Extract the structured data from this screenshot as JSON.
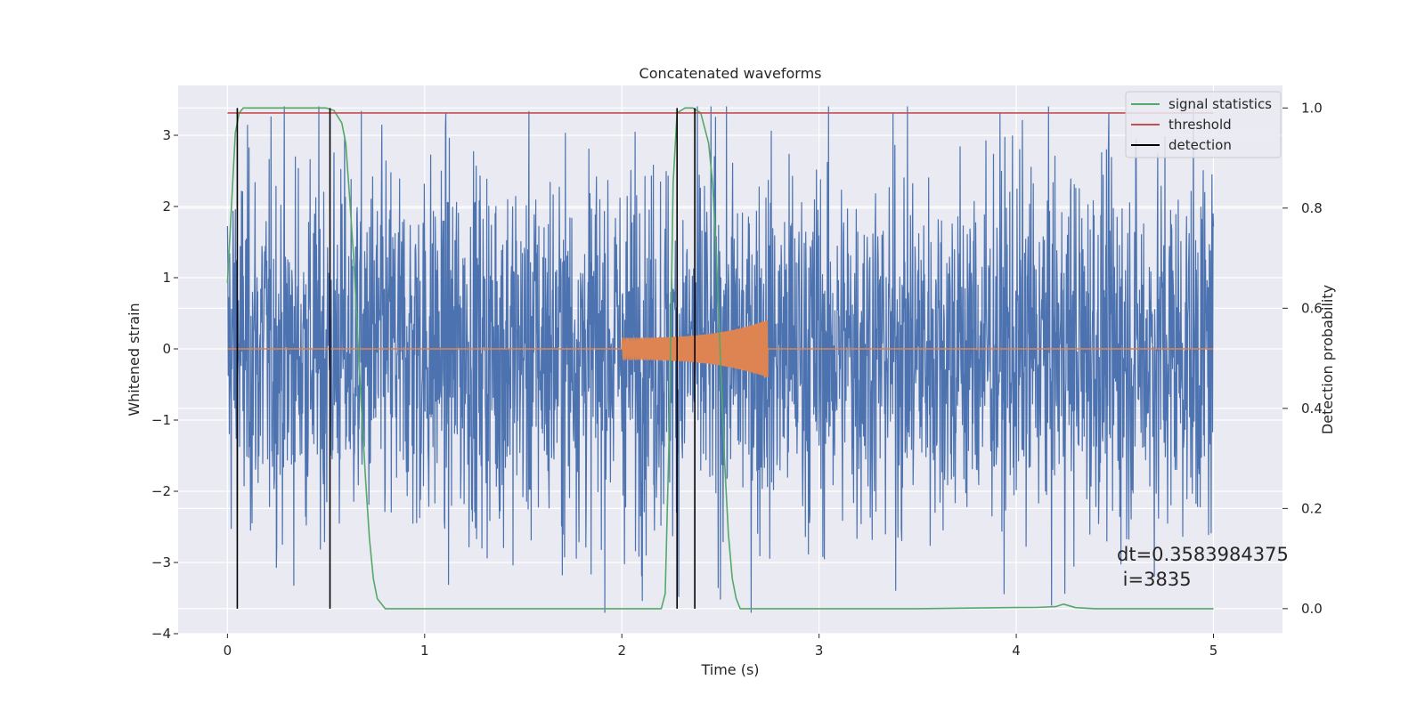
{
  "chart_data": {
    "type": "line",
    "title": "Concatenated waveforms",
    "xlabel": "Time (s)",
    "ylabel": "Whitened strain",
    "y2label": "Detection probability",
    "xlim": [
      -0.25,
      5.35
    ],
    "ylim": [
      -4,
      3.7
    ],
    "y2lim": [
      -0.05,
      1.045
    ],
    "xticks": [
      0,
      1,
      2,
      3,
      4,
      5
    ],
    "yticks": [
      -4,
      -3,
      -2,
      -1,
      0,
      1,
      2,
      3
    ],
    "y2ticks": [
      0.0,
      0.2,
      0.4,
      0.6,
      0.8,
      1.0
    ],
    "xtick_labels": [
      "0",
      "1",
      "2",
      "3",
      "4",
      "5"
    ],
    "ytick_labels": [
      "−4",
      "−3",
      "−2",
      "−1",
      "0",
      "1",
      "2",
      "3"
    ],
    "y2tick_labels": [
      "0.0",
      "0.2",
      "0.4",
      "0.6",
      "0.8",
      "1.0"
    ],
    "grid": true,
    "legend_position": "top-right",
    "legend": [
      {
        "name": "signal statistics",
        "color": "#55a868"
      },
      {
        "name": "threshold",
        "color": "#c44e52"
      },
      {
        "name": "detection",
        "color": "#000000"
      }
    ],
    "series": [
      {
        "name": "",
        "axis": "left",
        "color": "#4c72b0",
        "kind": "noise",
        "x_range": [
          0,
          5
        ],
        "y_range": [
          -3.7,
          3.4
        ],
        "typical_amplitude": 1.3
      },
      {
        "name": "",
        "axis": "left",
        "color": "#dd8452",
        "kind": "chirp",
        "x_range": [
          0,
          5
        ],
        "chirp_interval": [
          2.0,
          2.74
        ],
        "chirp_start_amplitude": 0.15,
        "chirp_peak_amplitude": 0.4
      },
      {
        "name": "signal statistics",
        "axis": "right",
        "color": "#55a868",
        "x": [
          0.0,
          0.02,
          0.04,
          0.06,
          0.08,
          0.12,
          0.2,
          0.3,
          0.4,
          0.5,
          0.54,
          0.58,
          0.6,
          0.62,
          0.64,
          0.66,
          0.68,
          0.7,
          0.72,
          0.74,
          0.76,
          0.8,
          1.0,
          1.5,
          2.0,
          2.2,
          2.22,
          2.24,
          2.26,
          2.28,
          2.32,
          2.36,
          2.4,
          2.44,
          2.46,
          2.48,
          2.5,
          2.52,
          2.54,
          2.56,
          2.58,
          2.6,
          2.65,
          3.0,
          3.5,
          4.0,
          4.1,
          4.2,
          4.24,
          4.3,
          4.4,
          4.6,
          5.0
        ],
        "y": [
          0.65,
          0.8,
          0.95,
          0.99,
          1.0,
          1.0,
          1.0,
          1.0,
          1.0,
          1.0,
          0.995,
          0.97,
          0.93,
          0.82,
          0.7,
          0.55,
          0.4,
          0.26,
          0.14,
          0.06,
          0.02,
          0.0,
          0.0,
          0.0,
          0.0,
          0.0,
          0.03,
          0.35,
          0.85,
          0.99,
          1.0,
          1.0,
          0.99,
          0.93,
          0.85,
          0.7,
          0.5,
          0.3,
          0.15,
          0.06,
          0.02,
          0.0,
          0.0,
          0.0,
          0.0,
          0.0022,
          0.0025,
          0.004,
          0.009,
          0.002,
          0.0,
          0.0,
          0.0
        ]
      },
      {
        "name": "threshold",
        "axis": "right",
        "color": "#c44e52",
        "x": [
          0,
          5
        ],
        "y": [
          0.99,
          0.99
        ]
      }
    ],
    "detections": [
      0.05,
      0.52,
      2.28,
      2.37
    ],
    "annotation": {
      "line1": "dt=0.3583984375",
      "line2": " i=3835",
      "x": 4.5,
      "y": -3.0
    }
  }
}
